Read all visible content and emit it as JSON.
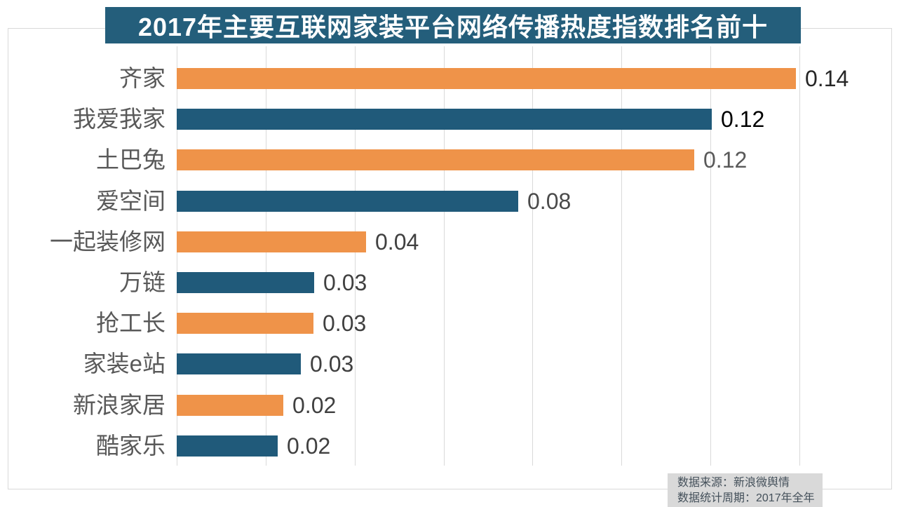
{
  "title": {
    "text": "2017年主要互联网家装平台网络传播热度指数排名前十"
  },
  "source_note": {
    "line1": "数据来源：新浪微舆情",
    "line2": "数据统计周期：2017年全年"
  },
  "colors": {
    "banner_bg": "#245E7B",
    "title_text": "#FFFFFF",
    "bar_orange": "#EF9349",
    "bar_blue": "#205A7A",
    "gridline": "#D9D9D9",
    "frame_border": "#D9D9D9",
    "category_label": "#595959",
    "source_bg": "#D9D9D9",
    "source_text": "#44505A"
  },
  "chart_data": {
    "type": "bar",
    "orientation": "horizontal",
    "title": "2017年主要互联网家装平台网络传播热度指数排名前十",
    "categories": [
      "齐家",
      "我爱我家",
      "土巴兔",
      "爱空间",
      "一起装修网",
      "万链",
      "抢工长",
      "家装e站",
      "新浪家居",
      "酷家乐"
    ],
    "values": [
      0.14,
      0.12,
      0.12,
      0.08,
      0.04,
      0.03,
      0.03,
      0.03,
      0.02,
      0.02
    ],
    "value_labels": [
      "0.14",
      "0.12",
      "0.12",
      "0.08",
      "0.04",
      "0.03",
      "0.03",
      "0.03",
      "0.02",
      "0.02"
    ],
    "bar_lengths_est": [
      0.1392,
      0.1203,
      0.1164,
      0.0768,
      0.0426,
      0.0309,
      0.0308,
      0.0279,
      0.024,
      0.0227
    ],
    "bar_colors": [
      "orange",
      "blue",
      "orange",
      "blue",
      "orange",
      "blue",
      "orange",
      "blue",
      "orange",
      "blue"
    ],
    "value_label_colors": [
      "#262626",
      "#000000",
      "#595959",
      "#4A4A4A",
      "#404040",
      "#404040",
      "#404040",
      "#404040",
      "#404040",
      "#404040"
    ],
    "xlabel": "",
    "ylabel": "",
    "xlim": [
      0,
      0.16
    ],
    "grid_interval": 0.02,
    "grid": true,
    "legend": false
  }
}
